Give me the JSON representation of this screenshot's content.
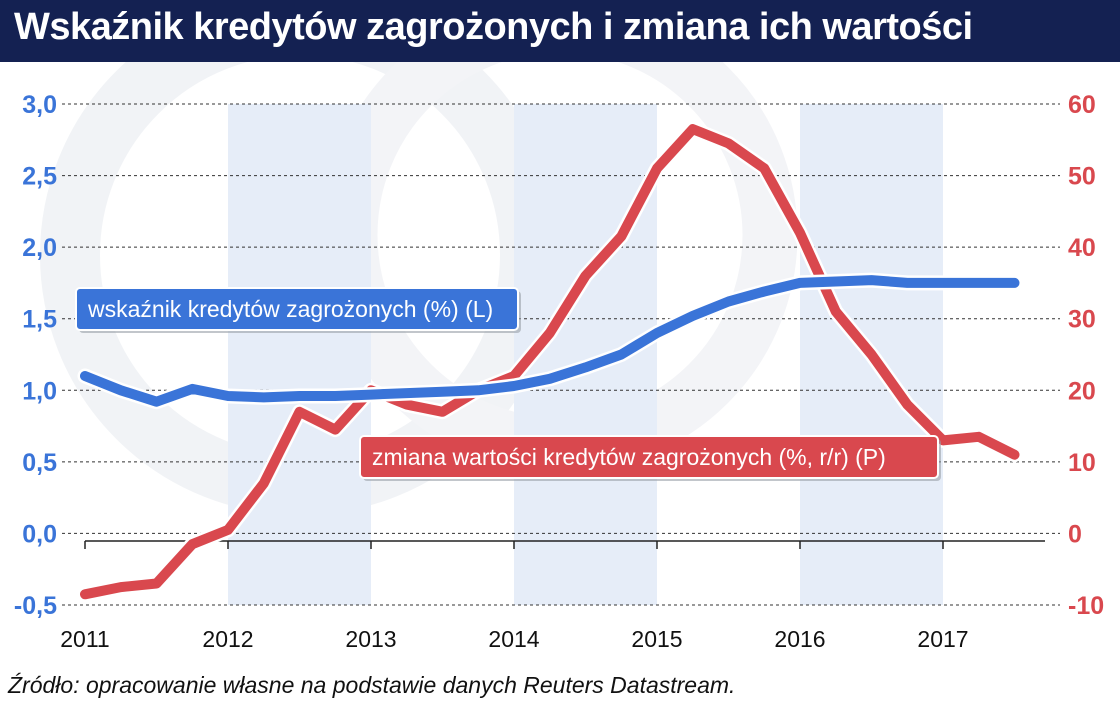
{
  "chart_data": {
    "type": "line",
    "title": "Wskaźnik kredytów zagrożonych i zmiana ich wartości",
    "source": "Źródło: opracowanie własne na podstawie danych Reuters Datastream.",
    "x_ticks": [
      "2011",
      "2012",
      "2013",
      "2014",
      "2015",
      "2016",
      "2017"
    ],
    "y_left": {
      "ticks": [
        "3,0",
        "2,5",
        "2,0",
        "1,5",
        "1,0",
        "0,5",
        "0,0",
        "-0,5"
      ],
      "ylim": [
        -0.5,
        3.0
      ]
    },
    "y_right": {
      "ticks": [
        "60",
        "50",
        "40",
        "30",
        "20",
        "10",
        "0",
        "-10"
      ],
      "ylim": [
        -10,
        60
      ]
    },
    "grid": true,
    "shaded_years": [
      "2012",
      "2014",
      "2016"
    ],
    "series": [
      {
        "name": "wskaźnik kredytów zagrożonych (%) (L)",
        "axis": "left",
        "color": "#3a74d8",
        "x": [
          2011.0,
          2011.25,
          2011.5,
          2011.75,
          2012.0,
          2012.25,
          2012.5,
          2012.75,
          2013.0,
          2013.25,
          2013.5,
          2013.75,
          2014.0,
          2014.25,
          2014.5,
          2014.75,
          2015.0,
          2015.25,
          2015.5,
          2015.75,
          2016.0,
          2016.25,
          2016.5,
          2016.75,
          2017.0,
          2017.25,
          2017.5
        ],
        "values": [
          1.1,
          1.0,
          0.92,
          1.01,
          0.96,
          0.95,
          0.96,
          0.96,
          0.97,
          0.98,
          0.99,
          1.0,
          1.03,
          1.08,
          1.16,
          1.25,
          1.4,
          1.52,
          1.62,
          1.69,
          1.75,
          1.76,
          1.77,
          1.75,
          1.75,
          1.75,
          1.75
        ]
      },
      {
        "name": "zmiana wartości kredytów zagrożonych (%, r/r) (P)",
        "axis": "right",
        "color": "#d9484e",
        "x": [
          2011.0,
          2011.25,
          2011.5,
          2011.75,
          2012.0,
          2012.25,
          2012.5,
          2012.75,
          2013.0,
          2013.25,
          2013.5,
          2013.75,
          2014.0,
          2014.25,
          2014.5,
          2014.75,
          2015.0,
          2015.25,
          2015.5,
          2015.75,
          2016.0,
          2016.25,
          2016.5,
          2016.75,
          2017.0,
          2017.25,
          2017.5
        ],
        "values": [
          -8.5,
          -7.5,
          -7.0,
          -1.5,
          0.5,
          7.0,
          17.0,
          14.5,
          20.0,
          18.0,
          17.0,
          20.0,
          22.0,
          28.0,
          36.0,
          41.5,
          51.0,
          56.5,
          54.5,
          51.0,
          42.0,
          31.0,
          25.0,
          18.0,
          13.0,
          13.5,
          11.0
        ]
      }
    ]
  }
}
